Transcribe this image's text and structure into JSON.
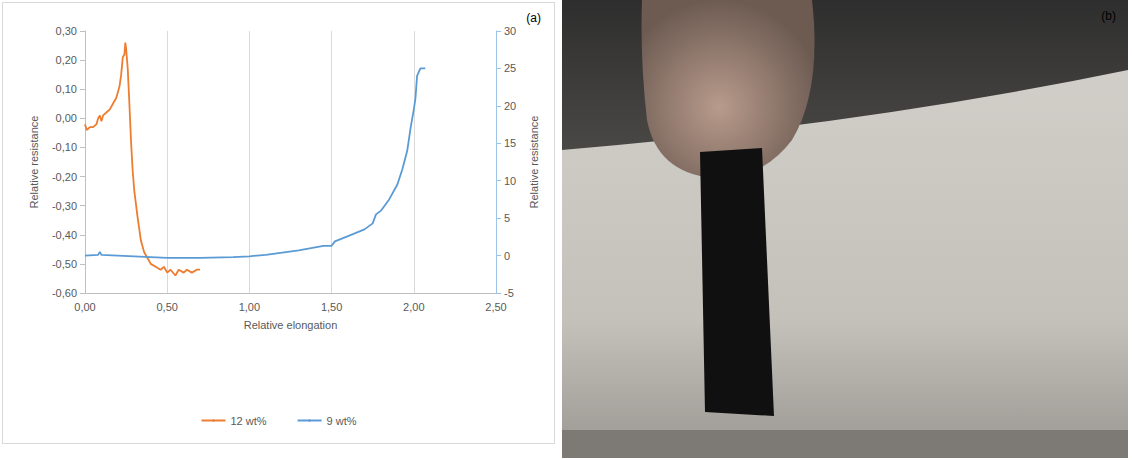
{
  "chart_data": {
    "type": "line",
    "annotations": [
      "(a)"
    ],
    "x_label": "Relative elongation",
    "y_label": "Relative resistance",
    "y2_label": "Relative resistance",
    "xlim": [
      0,
      2.5
    ],
    "xticks": [
      {
        "value": 0,
        "label": "0,00"
      },
      {
        "value": 0.5,
        "label": "0,50"
      },
      {
        "value": 1,
        "label": "1,00"
      },
      {
        "value": 1.5,
        "label": "1,50"
      },
      {
        "value": 2,
        "label": "2,00"
      },
      {
        "value": 2.5,
        "label": "2,50"
      }
    ],
    "ylim": [
      -0.6,
      0.3
    ],
    "yticks": [
      {
        "value": -0.6,
        "label": "-0,60"
      },
      {
        "value": -0.5,
        "label": "-0,50"
      },
      {
        "value": -0.4,
        "label": "-0,40"
      },
      {
        "value": -0.3,
        "label": "-0,30"
      },
      {
        "value": -0.2,
        "label": "-0,20"
      },
      {
        "value": -0.1,
        "label": "-0,10"
      },
      {
        "value": 0,
        "label": "0,00"
      },
      {
        "value": 0.1,
        "label": "0,10"
      },
      {
        "value": 0.2,
        "label": "0,20"
      },
      {
        "value": 0.3,
        "label": "0,30"
      }
    ],
    "y2lim": [
      -5,
      30
    ],
    "y2ticks": [
      -5,
      0,
      5,
      10,
      15,
      20,
      25,
      30
    ],
    "grid": true,
    "legend": "bottom",
    "series": [
      {
        "name": "12 wt%",
        "color": "#ED7D31",
        "axis": "y",
        "x": [
          0,
          0.01,
          0.03,
          0.05,
          0.07,
          0.08,
          0.09,
          0.1,
          0.11,
          0.13,
          0.15,
          0.17,
          0.19,
          0.21,
          0.22,
          0.23,
          0.24,
          0.245,
          0.25,
          0.26,
          0.27,
          0.28,
          0.29,
          0.3,
          0.32,
          0.34,
          0.36,
          0.38,
          0.4,
          0.43,
          0.46,
          0.48,
          0.5,
          0.52,
          0.55,
          0.57,
          0.6,
          0.62,
          0.65,
          0.68,
          0.7
        ],
        "values": [
          -0.02,
          -0.04,
          -0.03,
          -0.03,
          -0.02,
          0.0,
          0.01,
          -0.01,
          0.01,
          0.02,
          0.03,
          0.05,
          0.07,
          0.11,
          0.15,
          0.21,
          0.22,
          0.26,
          0.24,
          0.17,
          0.05,
          -0.08,
          -0.18,
          -0.25,
          -0.34,
          -0.42,
          -0.46,
          -0.48,
          -0.5,
          -0.51,
          -0.52,
          -0.51,
          -0.53,
          -0.52,
          -0.54,
          -0.52,
          -0.53,
          -0.52,
          -0.53,
          -0.52,
          -0.52
        ]
      },
      {
        "name": "9 wt%",
        "color": "#5B9BD5",
        "axis": "y2",
        "x": [
          0,
          0.08,
          0.09,
          0.1,
          0.2,
          0.3,
          0.4,
          0.5,
          0.7,
          0.9,
          1.0,
          1.1,
          1.2,
          1.3,
          1.4,
          1.45,
          1.5,
          1.52,
          1.6,
          1.7,
          1.75,
          1.77,
          1.8,
          1.85,
          1.9,
          1.93,
          1.96,
          1.98,
          2.0,
          2.01,
          2.02,
          2.04,
          2.07
        ],
        "values": [
          0,
          0.1,
          0.5,
          0.1,
          0,
          -0.1,
          -0.2,
          -0.3,
          -0.3,
          -0.2,
          -0.1,
          0.1,
          0.4,
          0.7,
          1.1,
          1.3,
          1.3,
          1.9,
          2.6,
          3.5,
          4.3,
          5.5,
          6,
          7.5,
          9.5,
          11.5,
          14,
          17,
          19.5,
          21,
          24,
          25,
          25
        ]
      }
    ]
  },
  "image": {
    "label": "(b)"
  }
}
